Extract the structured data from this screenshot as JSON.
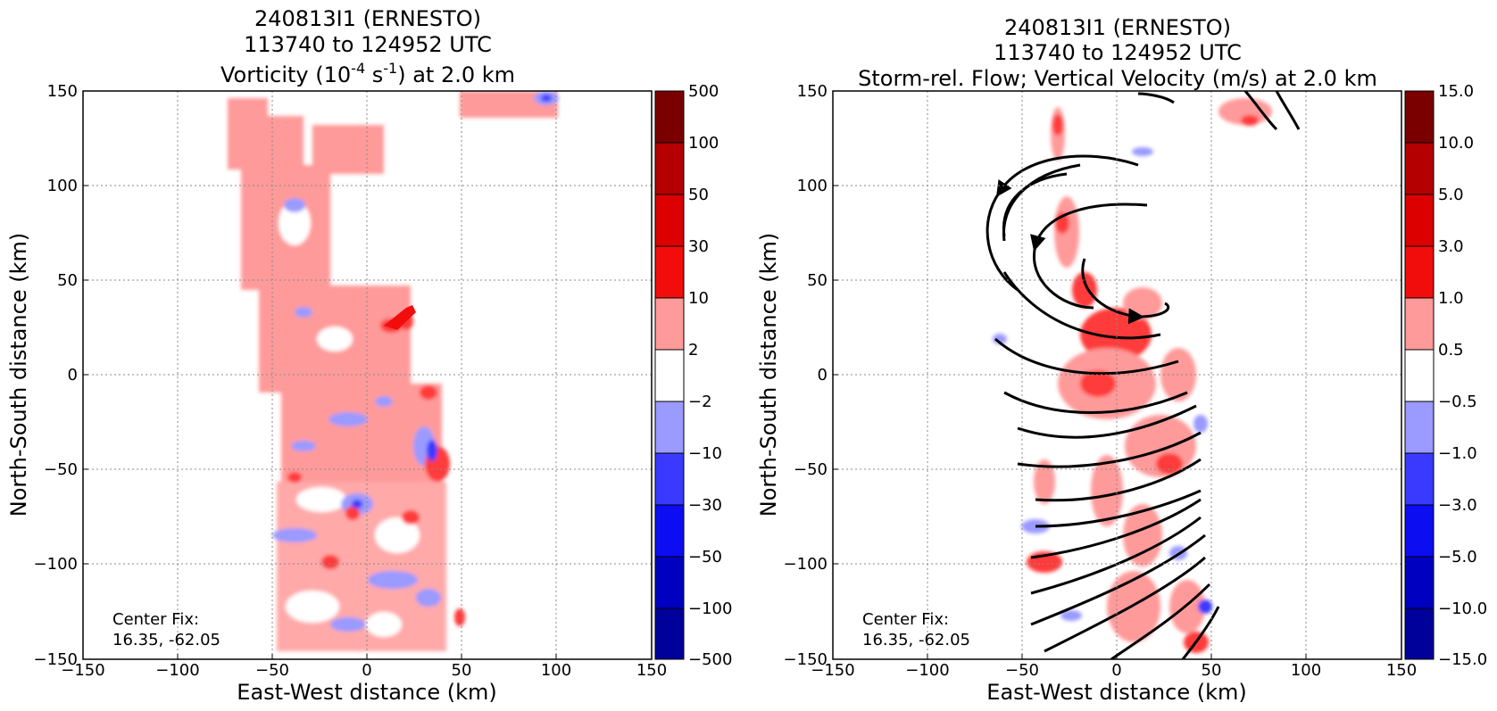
{
  "chart_data": [
    {
      "type": "heatmap",
      "title_lines": [
        "240813I1 (ERNESTO)",
        "113740 to 124952 UTC"
      ],
      "title_line3": {
        "pre": "Vorticity (10",
        "sup1": "-4",
        "mid": " s",
        "sup2": "-1",
        "post": ") at 2.0 km"
      },
      "xlabel": "East-West distance (km)",
      "ylabel": "North-South distance (km)",
      "xlim": [
        -150,
        150
      ],
      "ylim": [
        -150,
        150
      ],
      "xticks": [
        "−150",
        "−100",
        "−50",
        "0",
        "50",
        "100",
        "150"
      ],
      "yticks": [
        "150",
        "100",
        "50",
        "0",
        "−50",
        "−100",
        "−150"
      ],
      "grid": true,
      "annotation": [
        "Center Fix:",
        "16.35, -62.05"
      ],
      "colorbar": {
        "labels": [
          "500",
          "100",
          "50",
          "30",
          "10",
          "2",
          "−2",
          "−10",
          "−30",
          "−50",
          "−100",
          "−500"
        ],
        "colors": [
          "#7a0000",
          "#b40000",
          "#dc0000",
          "#f20d0d",
          "#ff3a3a",
          "#ff9a9a",
          "#ffffff",
          "#9a9aff",
          "#3a3aff",
          "#0d0df2",
          "#0000c0",
          "#00009a",
          "#00007a"
        ]
      },
      "data_region_x": [
        -50,
        50
      ],
      "features": [
        {
          "x": 10,
          "y": 25,
          "level": "10"
        },
        {
          "x": 30,
          "y": -50,
          "level": "10"
        },
        {
          "x": 35,
          "y": -40,
          "level": "−10"
        },
        {
          "x": 95,
          "y": 145,
          "level": "−10"
        },
        {
          "x": 48,
          "y": -130,
          "level": "10"
        }
      ]
    },
    {
      "type": "heatmap",
      "title_lines": [
        "240813I1 (ERNESTO)",
        "113740 to 124952 UTC",
        "Storm-rel. Flow; Vertical Velocity (m/s) at 2.0 km"
      ],
      "xlabel": "East-West distance (km)",
      "ylabel": "North-South distance (km)",
      "xlim": [
        -150,
        150
      ],
      "ylim": [
        -150,
        150
      ],
      "xticks": [
        "−150",
        "−100",
        "−50",
        "0",
        "50",
        "100",
        "150"
      ],
      "yticks": [
        "150",
        "100",
        "50",
        "0",
        "−50",
        "−100",
        "−150"
      ],
      "grid": true,
      "annotation": [
        "Center Fix:",
        "16.35, -62.05"
      ],
      "colorbar": {
        "labels": [
          "15.0",
          "10.0",
          "5.0",
          "3.0",
          "1.0",
          "0.5",
          "−0.5",
          "−1.0",
          "−3.0",
          "−5.0",
          "−10.0",
          "−15.0"
        ],
        "colors": [
          "#7a0000",
          "#b40000",
          "#dc0000",
          "#f20d0d",
          "#ff3a3a",
          "#ff9a9a",
          "#ffffff",
          "#9a9aff",
          "#3a3aff",
          "#0d0df2",
          "#0000c0",
          "#00009a",
          "#00007a"
        ]
      },
      "streamlines": "cyclonic flow curving around a center near (0, 60) km"
    }
  ]
}
